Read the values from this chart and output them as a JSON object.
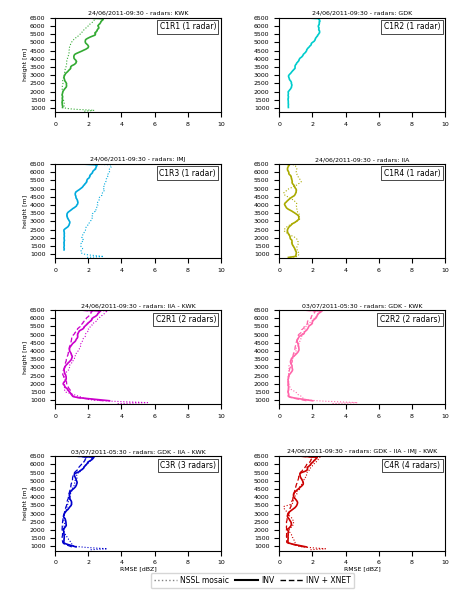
{
  "panels": [
    {
      "title": "24/06/2011-09:30 - radars: KWK",
      "label": "C1R1 (1 radar)",
      "color": "#33aa33",
      "has_dotted": true,
      "has_solid": true,
      "has_dashed": false,
      "row": 0,
      "col": 0
    },
    {
      "title": "24/06/2011-09:30 - radars: GDK",
      "label": "C1R2 (1 radar)",
      "color": "#00cccc",
      "has_dotted": false,
      "has_solid": true,
      "has_dashed": false,
      "row": 0,
      "col": 1
    },
    {
      "title": "24/06/2011-09:30 - radars: IMJ",
      "label": "C1R3 (1 radar)",
      "color": "#00aadd",
      "has_dotted": true,
      "has_solid": true,
      "has_dashed": false,
      "row": 1,
      "col": 0
    },
    {
      "title": "24/06/2011-09:30 - radars: IIA",
      "label": "C1R4 (1 radar)",
      "color": "#aaaa00",
      "has_dotted": true,
      "has_solid": true,
      "has_dashed": false,
      "row": 1,
      "col": 1
    },
    {
      "title": "24/06/2011-09:30 - radars: IIA - KWK",
      "label": "C2R1 (2 radars)",
      "color": "#cc00cc",
      "has_dotted": true,
      "has_solid": true,
      "has_dashed": true,
      "row": 2,
      "col": 0
    },
    {
      "title": "03/07/2011-05:30 - radars: GDK - KWK",
      "label": "C2R2 (2 radars)",
      "color": "#ff66aa",
      "has_dotted": true,
      "has_solid": true,
      "has_dashed": true,
      "row": 2,
      "col": 1
    },
    {
      "title": "03/07/2011-05:30 - radars: GDK - IIA - KWK",
      "label": "C3R (3 radars)",
      "color": "#0000cc",
      "has_dotted": true,
      "has_solid": true,
      "has_dashed": true,
      "row": 3,
      "col": 0
    },
    {
      "title": "24/06/2011-09:30 - radars: GDK - IIA - IMJ - KWK",
      "label": "C4R (4 radars)",
      "color": "#cc0000",
      "has_dotted": true,
      "has_solid": true,
      "has_dashed": true,
      "row": 3,
      "col": 1
    }
  ],
  "xlim": [
    0,
    10
  ],
  "ylim": [
    750,
    6500
  ],
  "xlabel": "RMSE [dBZ]",
  "ylabel": "height [m]",
  "yticks": [
    1000,
    1500,
    2000,
    2500,
    3000,
    3500,
    4000,
    4500,
    5000,
    5500,
    6000,
    6500
  ],
  "xticks": [
    0,
    2,
    4,
    6,
    8,
    10
  ],
  "legend_labels": [
    "NSSL mosaic",
    "INV",
    "INV + XNET"
  ]
}
